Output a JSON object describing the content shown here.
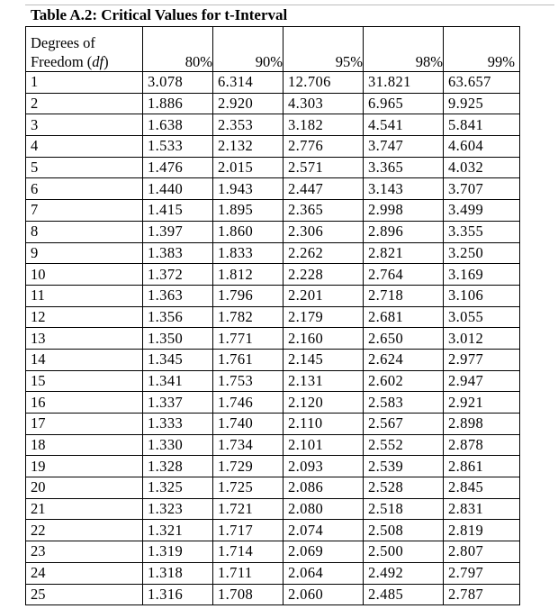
{
  "title": "Table A.2: Critical Values for t-Interval",
  "header": {
    "df_line1": "Degrees of",
    "df_line2_prefix": "Freedom (",
    "df_symbol": "df",
    "df_line2_suffix": ")",
    "levels": [
      "80%",
      "90%",
      "95%",
      "98%",
      "99%"
    ]
  },
  "rows": [
    {
      "df": "1",
      "values": [
        "3.078",
        "6.314",
        "12.706",
        "31.821",
        "63.657"
      ]
    },
    {
      "df": "2",
      "values": [
        "1.886",
        "2.920",
        "4.303",
        "6.965",
        "9.925"
      ]
    },
    {
      "df": "3",
      "values": [
        "1.638",
        "2.353",
        "3.182",
        "4.541",
        "5.841"
      ]
    },
    {
      "df": "4",
      "values": [
        "1.533",
        "2.132",
        "2.776",
        "3.747",
        "4.604"
      ]
    },
    {
      "df": "5",
      "values": [
        "1.476",
        "2.015",
        "2.571",
        "3.365",
        "4.032"
      ]
    },
    {
      "df": "6",
      "values": [
        "1.440",
        "1.943",
        "2.447",
        "3.143",
        "3.707"
      ]
    },
    {
      "df": "7",
      "values": [
        "1.415",
        "1.895",
        "2.365",
        "2.998",
        "3.499"
      ]
    },
    {
      "df": "8",
      "values": [
        "1.397",
        "1.860",
        "2.306",
        "2.896",
        "3.355"
      ]
    },
    {
      "df": "9",
      "values": [
        "1.383",
        "1.833",
        "2.262",
        "2.821",
        "3.250"
      ]
    },
    {
      "df": "10",
      "values": [
        "1.372",
        "1.812",
        "2.228",
        "2.764",
        "3.169"
      ]
    },
    {
      "df": "11",
      "values": [
        "1.363",
        "1.796",
        "2.201",
        "2.718",
        "3.106"
      ]
    },
    {
      "df": "12",
      "values": [
        "1.356",
        "1.782",
        "2.179",
        "2.681",
        "3.055"
      ]
    },
    {
      "df": "13",
      "values": [
        "1.350",
        "1.771",
        "2.160",
        "2.650",
        "3.012"
      ]
    },
    {
      "df": "14",
      "values": [
        "1.345",
        "1.761",
        "2.145",
        "2.624",
        "2.977"
      ]
    },
    {
      "df": "15",
      "values": [
        "1.341",
        "1.753",
        "2.131",
        "2.602",
        "2.947"
      ]
    },
    {
      "df": "16",
      "values": [
        "1.337",
        "1.746",
        "2.120",
        "2.583",
        "2.921"
      ]
    },
    {
      "df": "17",
      "values": [
        "1.333",
        "1.740",
        "2.110",
        "2.567",
        "2.898"
      ]
    },
    {
      "df": "18",
      "values": [
        "1.330",
        "1.734",
        "2.101",
        "2.552",
        "2.878"
      ]
    },
    {
      "df": "19",
      "values": [
        "1.328",
        "1.729",
        "2.093",
        "2.539",
        "2.861"
      ]
    },
    {
      "df": "20",
      "values": [
        "1.325",
        "1.725",
        "2.086",
        "2.528",
        "2.845"
      ]
    },
    {
      "df": "21",
      "values": [
        "1.323",
        "1.721",
        "2.080",
        "2.518",
        "2.831"
      ]
    },
    {
      "df": "22",
      "values": [
        "1.321",
        "1.717",
        "2.074",
        "2.508",
        "2.819"
      ]
    },
    {
      "df": "23",
      "values": [
        "1.319",
        "1.714",
        "2.069",
        "2.500",
        "2.807"
      ]
    },
    {
      "df": "24",
      "values": [
        "1.318",
        "1.711",
        "2.064",
        "2.492",
        "2.797"
      ]
    },
    {
      "df": "25",
      "values": [
        "1.316",
        "1.708",
        "2.060",
        "2.485",
        "2.787"
      ]
    }
  ]
}
